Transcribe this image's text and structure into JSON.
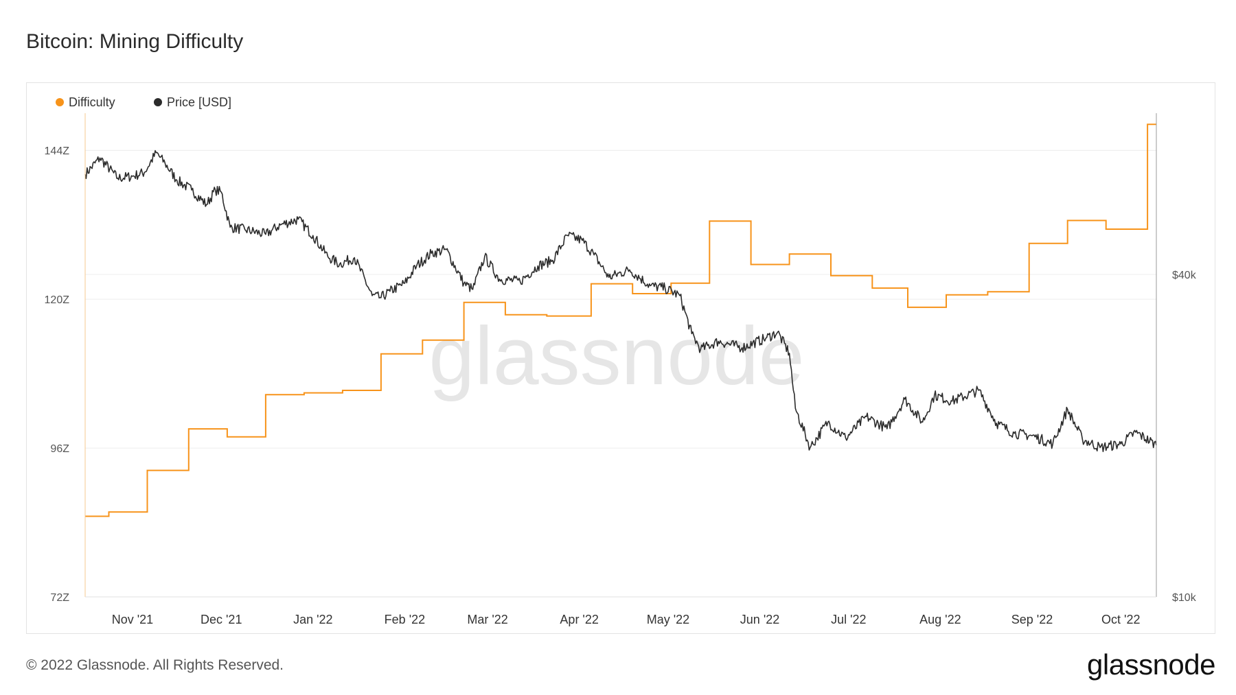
{
  "title": "Bitcoin: Mining Difficulty",
  "footer": {
    "copyright": "© 2022 Glassnode. All Rights Reserved.",
    "brand": "glassnode"
  },
  "watermark": "glassnode",
  "colors": {
    "difficulty": "#f7931a",
    "price": "#2b2b2b",
    "grid": "#ececec",
    "watermark": "#e6e6e6"
  },
  "chart_data": {
    "type": "line",
    "title": "Bitcoin: Mining Difficulty",
    "legend": {
      "position": "top-left",
      "entries": [
        "Difficulty",
        "Price [USD]"
      ]
    },
    "grid": true,
    "x_axis": {
      "range": [
        "2021-10-16",
        "2022-10-13"
      ],
      "ticks": [
        {
          "date": "2021-11-01",
          "label": "Nov '21"
        },
        {
          "date": "2021-12-01",
          "label": "Dec '21"
        },
        {
          "date": "2022-01-01",
          "label": "Jan '22"
        },
        {
          "date": "2022-02-01",
          "label": "Feb '22"
        },
        {
          "date": "2022-03-01",
          "label": "Mar '22"
        },
        {
          "date": "2022-04-01",
          "label": "Apr '22"
        },
        {
          "date": "2022-05-01",
          "label": "May '22"
        },
        {
          "date": "2022-06-01",
          "label": "Jun '22"
        },
        {
          "date": "2022-07-01",
          "label": "Jul '22"
        },
        {
          "date": "2022-08-01",
          "label": "Aug '22"
        },
        {
          "date": "2022-09-01",
          "label": "Sep '22"
        },
        {
          "date": "2022-10-01",
          "label": "Oct '22"
        }
      ]
    },
    "y_left": {
      "scale": "linear",
      "range": [
        72,
        150
      ],
      "ticks": [
        {
          "value": 72,
          "label": "72Z"
        },
        {
          "value": 96,
          "label": "96Z"
        },
        {
          "value": 120,
          "label": "120Z"
        },
        {
          "value": 144,
          "label": "144Z"
        }
      ]
    },
    "y_right": {
      "scale": "log",
      "range": [
        10000,
        80000
      ],
      "ticks": [
        {
          "value": 10000,
          "label": "$10k"
        },
        {
          "value": 40000,
          "label": "$40k"
        }
      ]
    },
    "series": [
      {
        "name": "Difficulty",
        "axis": "left",
        "step": true,
        "x": [
          "2021-10-16",
          "2021-10-24",
          "2021-11-06",
          "2021-11-20",
          "2021-12-03",
          "2021-12-16",
          "2021-12-29",
          "2022-01-11",
          "2022-01-24",
          "2022-02-07",
          "2022-02-21",
          "2022-03-07",
          "2022-03-21",
          "2022-04-05",
          "2022-04-19",
          "2022-05-02",
          "2022-05-15",
          "2022-05-29",
          "2022-06-11",
          "2022-06-25",
          "2022-07-09",
          "2022-07-21",
          "2022-08-03",
          "2022-08-17",
          "2022-08-31",
          "2022-09-13",
          "2022-09-26",
          "2022-10-10",
          "2022-10-13"
        ],
        "values": [
          85.0,
          85.7,
          92.4,
          99.1,
          97.8,
          104.6,
          104.9,
          105.3,
          111.2,
          113.4,
          119.5,
          117.5,
          117.3,
          122.5,
          120.9,
          122.6,
          132.6,
          125.6,
          127.3,
          123.8,
          121.8,
          118.7,
          120.7,
          121.2,
          129.0,
          132.7,
          131.3,
          148.2,
          148.2
        ]
      },
      {
        "name": "Price [USD]",
        "axis": "right",
        "x": [
          "2021-10-16",
          "2021-10-21",
          "2021-10-27",
          "2021-11-01",
          "2021-11-05",
          "2021-11-09",
          "2021-11-12",
          "2021-11-16",
          "2021-11-21",
          "2021-11-26",
          "2021-11-29",
          "2021-12-01",
          "2021-12-04",
          "2021-12-09",
          "2021-12-16",
          "2021-12-21",
          "2021-12-27",
          "2022-01-01",
          "2022-01-06",
          "2022-01-10",
          "2022-01-15",
          "2022-01-21",
          "2022-01-24",
          "2022-01-27",
          "2022-02-01",
          "2022-02-05",
          "2022-02-10",
          "2022-02-15",
          "2022-02-21",
          "2022-02-24",
          "2022-02-28",
          "2022-03-05",
          "2022-03-12",
          "2022-03-18",
          "2022-03-23",
          "2022-03-28",
          "2022-04-02",
          "2022-04-06",
          "2022-04-11",
          "2022-04-18",
          "2022-04-25",
          "2022-04-30",
          "2022-05-05",
          "2022-05-09",
          "2022-05-12",
          "2022-05-18",
          "2022-05-26",
          "2022-06-03",
          "2022-06-07",
          "2022-06-11",
          "2022-06-13",
          "2022-06-18",
          "2022-06-24",
          "2022-06-30",
          "2022-07-07",
          "2022-07-14",
          "2022-07-20",
          "2022-07-26",
          "2022-07-30",
          "2022-08-05",
          "2022-08-14",
          "2022-08-20",
          "2022-08-26",
          "2022-09-01",
          "2022-09-08",
          "2022-09-13",
          "2022-09-18",
          "2022-09-24",
          "2022-10-01",
          "2022-10-06",
          "2022-10-13"
        ],
        "values": [
          61500,
          66000,
          60500,
          61000,
          62000,
          67500,
          64500,
          60000,
          57500,
          54000,
          57500,
          57000,
          49000,
          48500,
          47500,
          49500,
          50700,
          47300,
          43200,
          41800,
          43000,
          36500,
          36200,
          37200,
          38500,
          41500,
          43800,
          44500,
          38500,
          37500,
          43200,
          39200,
          38800,
          41500,
          42500,
          47300,
          46300,
          43500,
          39500,
          40800,
          38100,
          37700,
          36500,
          31000,
          29000,
          30000,
          29200,
          30400,
          31200,
          28500,
          22500,
          19000,
          21200,
          19800,
          21700,
          20600,
          23400,
          21200,
          23800,
          23200,
          24300,
          21100,
          20200,
          20000,
          19300,
          22400,
          19700,
          19000,
          19300,
          20300,
          19200
        ]
      }
    ]
  }
}
